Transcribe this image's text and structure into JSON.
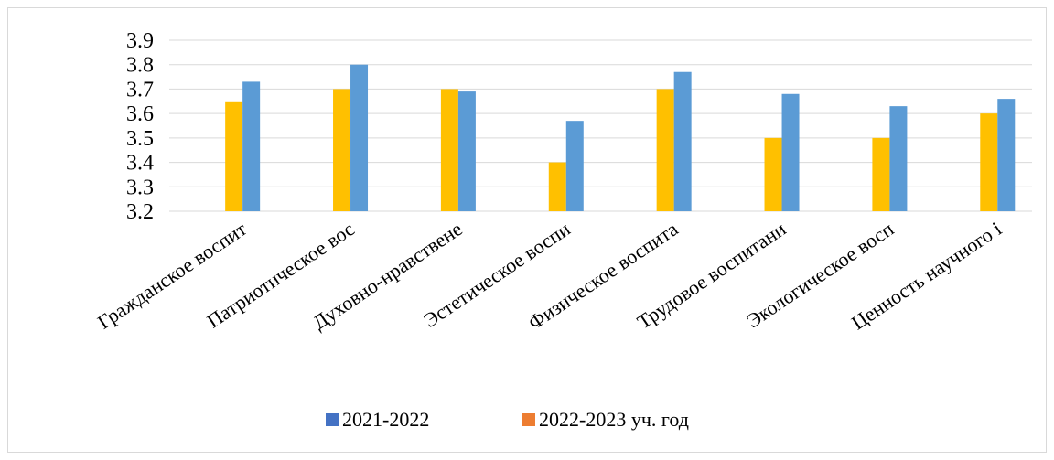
{
  "chart_data": {
    "type": "bar",
    "categories": [
      "Гражданское воспит",
      "Патриотическое вос",
      "Духовно-нравствене",
      "Эстетическое воспи",
      "Физическое воспита",
      "Трудовое воспитани",
      "Экологическое восп",
      "Ценность научного і"
    ],
    "series": [
      {
        "name": "2022-2023 уч. год",
        "color": "#FFC000",
        "values": [
          3.65,
          3.7,
          3.7,
          3.4,
          3.7,
          3.5,
          3.5,
          3.6
        ]
      },
      {
        "name": "2021-2022",
        "color": "#5B9BD5",
        "values": [
          3.73,
          3.8,
          3.69,
          3.57,
          3.77,
          3.68,
          3.63,
          3.66
        ]
      }
    ],
    "legend": [
      {
        "label": "2021-2022",
        "color": "#4472C4"
      },
      {
        "label": "2022-2023 уч. год",
        "color": "#ED7D31"
      }
    ],
    "yticks": [
      "3.2",
      "3.3",
      "3.4",
      "3.5",
      "3.6",
      "3.7",
      "3.8",
      "3.9"
    ],
    "ylim": [
      3.2,
      3.9
    ],
    "grid": true,
    "legend_position": "bottom",
    "title": "",
    "xlabel": "",
    "ylabel": ""
  }
}
